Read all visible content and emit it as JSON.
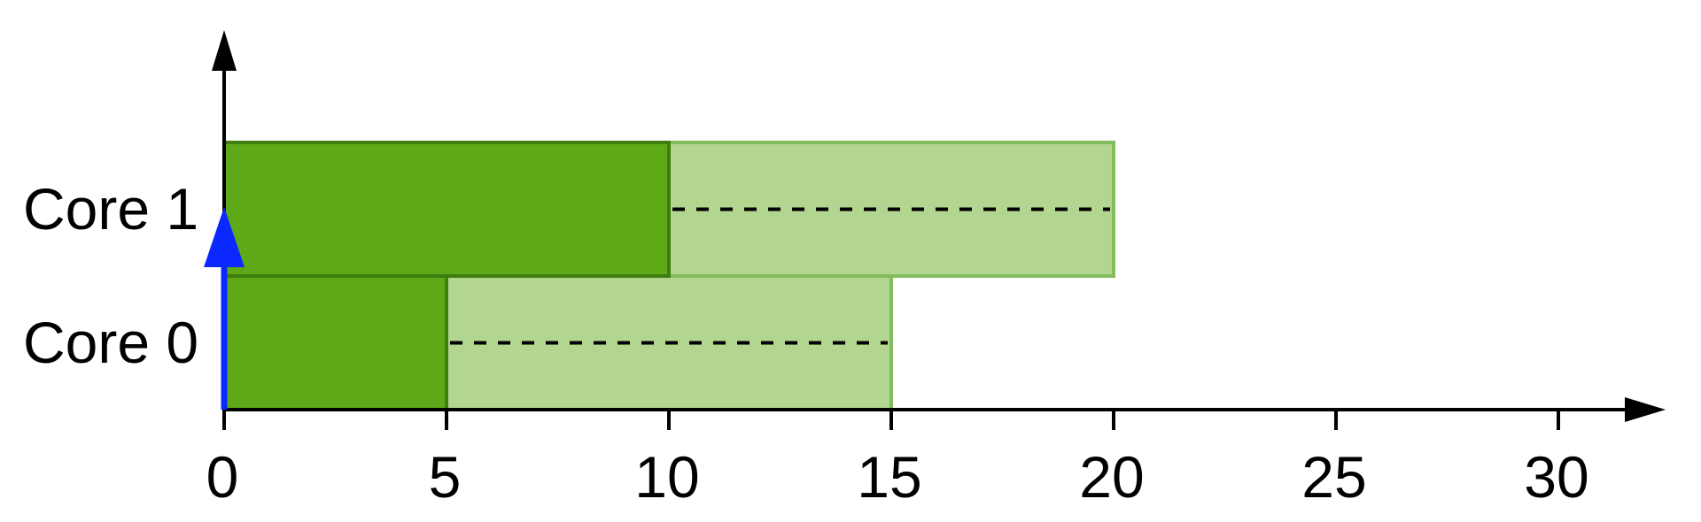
{
  "chart_data": {
    "type": "gantt",
    "rows": [
      "Core 0",
      "Core 1"
    ],
    "x_ticks": [
      "0",
      "5",
      "10",
      "15",
      "20",
      "25",
      "30"
    ],
    "xlim": [
      0,
      32
    ],
    "tasks": [
      {
        "row": "Core 0",
        "start": 0,
        "end": 5,
        "style": "solid"
      },
      {
        "row": "Core 0",
        "start": 5,
        "end": 15,
        "style": "light-dashed"
      },
      {
        "row": "Core 1",
        "start": 0,
        "end": 10,
        "style": "solid"
      },
      {
        "row": "Core 1",
        "start": 10,
        "end": 20,
        "style": "light-dashed"
      }
    ],
    "marker": {
      "type": "arrow",
      "x": 0,
      "color": "#0a28ff"
    },
    "colors": {
      "solid_fill": "#5fa919",
      "solid_stroke": "#3f7d10",
      "light_fill": "#b2d690",
      "light_stroke": "#84bb5c",
      "axis": "#000000",
      "dash": "#000000"
    },
    "grid": false,
    "legend": "none"
  }
}
